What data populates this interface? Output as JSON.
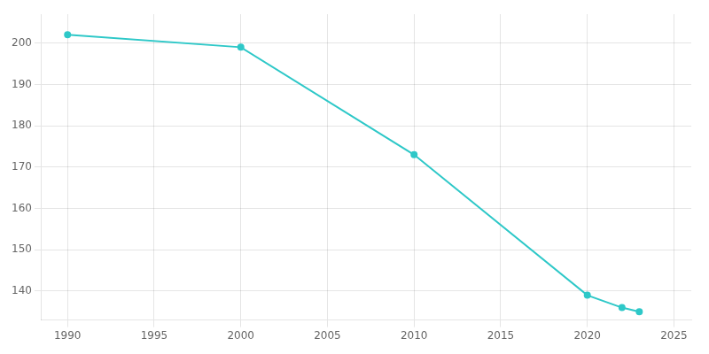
{
  "chart_data": {
    "type": "line",
    "x": [
      1990,
      2000,
      2010,
      2020,
      2022,
      2023
    ],
    "values": [
      202,
      199,
      173,
      139,
      136,
      135
    ],
    "color": "#2EC8C8",
    "marker": "circle",
    "xlim": [
      1988.5,
      2026
    ],
    "xticks": [
      1990,
      1995,
      2000,
      2005,
      2010,
      2015,
      2020,
      2025
    ],
    "ylim": [
      133,
      207
    ],
    "yticks": [
      140,
      150,
      160,
      170,
      180,
      190,
      200
    ],
    "grid": true
  }
}
